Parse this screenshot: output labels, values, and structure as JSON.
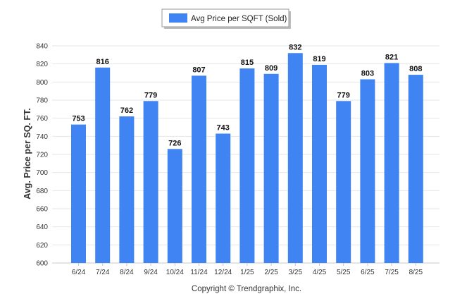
{
  "chart_data": {
    "type": "bar",
    "categories": [
      "6/24",
      "7/24",
      "8/24",
      "9/24",
      "10/24",
      "11/24",
      "12/24",
      "1/25",
      "2/25",
      "3/25",
      "4/25",
      "5/25",
      "6/25",
      "7/25",
      "8/25"
    ],
    "series": [
      {
        "name": "Avg Price per SQFT (Sold)",
        "values": [
          753,
          816,
          762,
          779,
          726,
          807,
          743,
          815,
          809,
          832,
          819,
          779,
          803,
          821,
          808
        ]
      }
    ],
    "title": "",
    "xlabel": "",
    "ylabel": "Avg. Price per SQ. FT.",
    "ylim": [
      600,
      840
    ],
    "yticks": [
      600,
      620,
      640,
      660,
      680,
      700,
      720,
      740,
      760,
      780,
      800,
      820,
      840
    ],
    "grid": true,
    "legend_position": "top-center",
    "data_labels": true,
    "colors": {
      "bar": "#3f84f2",
      "grid": "#e6e6e6",
      "axis": "#c8c8c8"
    }
  },
  "footer": {
    "credit": "Copyright © Trendgraphix, Inc."
  }
}
